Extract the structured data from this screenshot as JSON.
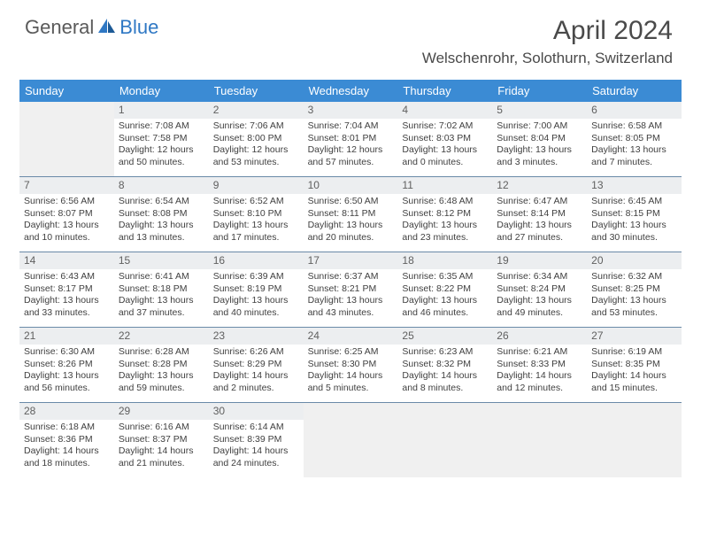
{
  "logo": {
    "part1": "General",
    "part2": "Blue"
  },
  "title": "April 2024",
  "location": "Welschenrohr, Solothurn, Switzerland",
  "colors": {
    "header_bg": "#3b8bd4",
    "header_text": "#ffffff",
    "divider": "#6a8aa8",
    "daynum_bg": "#eceef0",
    "empty_bg": "#f0f0f0",
    "logo_accent": "#2f78c4"
  },
  "day_headers": [
    "Sunday",
    "Monday",
    "Tuesday",
    "Wednesday",
    "Thursday",
    "Friday",
    "Saturday"
  ],
  "weeks": [
    [
      {
        "empty": true
      },
      {
        "num": "1",
        "sunrise": "Sunrise: 7:08 AM",
        "sunset": "Sunset: 7:58 PM",
        "day1": "Daylight: 12 hours",
        "day2": "and 50 minutes."
      },
      {
        "num": "2",
        "sunrise": "Sunrise: 7:06 AM",
        "sunset": "Sunset: 8:00 PM",
        "day1": "Daylight: 12 hours",
        "day2": "and 53 minutes."
      },
      {
        "num": "3",
        "sunrise": "Sunrise: 7:04 AM",
        "sunset": "Sunset: 8:01 PM",
        "day1": "Daylight: 12 hours",
        "day2": "and 57 minutes."
      },
      {
        "num": "4",
        "sunrise": "Sunrise: 7:02 AM",
        "sunset": "Sunset: 8:03 PM",
        "day1": "Daylight: 13 hours",
        "day2": "and 0 minutes."
      },
      {
        "num": "5",
        "sunrise": "Sunrise: 7:00 AM",
        "sunset": "Sunset: 8:04 PM",
        "day1": "Daylight: 13 hours",
        "day2": "and 3 minutes."
      },
      {
        "num": "6",
        "sunrise": "Sunrise: 6:58 AM",
        "sunset": "Sunset: 8:05 PM",
        "day1": "Daylight: 13 hours",
        "day2": "and 7 minutes."
      }
    ],
    [
      {
        "num": "7",
        "sunrise": "Sunrise: 6:56 AM",
        "sunset": "Sunset: 8:07 PM",
        "day1": "Daylight: 13 hours",
        "day2": "and 10 minutes."
      },
      {
        "num": "8",
        "sunrise": "Sunrise: 6:54 AM",
        "sunset": "Sunset: 8:08 PM",
        "day1": "Daylight: 13 hours",
        "day2": "and 13 minutes."
      },
      {
        "num": "9",
        "sunrise": "Sunrise: 6:52 AM",
        "sunset": "Sunset: 8:10 PM",
        "day1": "Daylight: 13 hours",
        "day2": "and 17 minutes."
      },
      {
        "num": "10",
        "sunrise": "Sunrise: 6:50 AM",
        "sunset": "Sunset: 8:11 PM",
        "day1": "Daylight: 13 hours",
        "day2": "and 20 minutes."
      },
      {
        "num": "11",
        "sunrise": "Sunrise: 6:48 AM",
        "sunset": "Sunset: 8:12 PM",
        "day1": "Daylight: 13 hours",
        "day2": "and 23 minutes."
      },
      {
        "num": "12",
        "sunrise": "Sunrise: 6:47 AM",
        "sunset": "Sunset: 8:14 PM",
        "day1": "Daylight: 13 hours",
        "day2": "and 27 minutes."
      },
      {
        "num": "13",
        "sunrise": "Sunrise: 6:45 AM",
        "sunset": "Sunset: 8:15 PM",
        "day1": "Daylight: 13 hours",
        "day2": "and 30 minutes."
      }
    ],
    [
      {
        "num": "14",
        "sunrise": "Sunrise: 6:43 AM",
        "sunset": "Sunset: 8:17 PM",
        "day1": "Daylight: 13 hours",
        "day2": "and 33 minutes."
      },
      {
        "num": "15",
        "sunrise": "Sunrise: 6:41 AM",
        "sunset": "Sunset: 8:18 PM",
        "day1": "Daylight: 13 hours",
        "day2": "and 37 minutes."
      },
      {
        "num": "16",
        "sunrise": "Sunrise: 6:39 AM",
        "sunset": "Sunset: 8:19 PM",
        "day1": "Daylight: 13 hours",
        "day2": "and 40 minutes."
      },
      {
        "num": "17",
        "sunrise": "Sunrise: 6:37 AM",
        "sunset": "Sunset: 8:21 PM",
        "day1": "Daylight: 13 hours",
        "day2": "and 43 minutes."
      },
      {
        "num": "18",
        "sunrise": "Sunrise: 6:35 AM",
        "sunset": "Sunset: 8:22 PM",
        "day1": "Daylight: 13 hours",
        "day2": "and 46 minutes."
      },
      {
        "num": "19",
        "sunrise": "Sunrise: 6:34 AM",
        "sunset": "Sunset: 8:24 PM",
        "day1": "Daylight: 13 hours",
        "day2": "and 49 minutes."
      },
      {
        "num": "20",
        "sunrise": "Sunrise: 6:32 AM",
        "sunset": "Sunset: 8:25 PM",
        "day1": "Daylight: 13 hours",
        "day2": "and 53 minutes."
      }
    ],
    [
      {
        "num": "21",
        "sunrise": "Sunrise: 6:30 AM",
        "sunset": "Sunset: 8:26 PM",
        "day1": "Daylight: 13 hours",
        "day2": "and 56 minutes."
      },
      {
        "num": "22",
        "sunrise": "Sunrise: 6:28 AM",
        "sunset": "Sunset: 8:28 PM",
        "day1": "Daylight: 13 hours",
        "day2": "and 59 minutes."
      },
      {
        "num": "23",
        "sunrise": "Sunrise: 6:26 AM",
        "sunset": "Sunset: 8:29 PM",
        "day1": "Daylight: 14 hours",
        "day2": "and 2 minutes."
      },
      {
        "num": "24",
        "sunrise": "Sunrise: 6:25 AM",
        "sunset": "Sunset: 8:30 PM",
        "day1": "Daylight: 14 hours",
        "day2": "and 5 minutes."
      },
      {
        "num": "25",
        "sunrise": "Sunrise: 6:23 AM",
        "sunset": "Sunset: 8:32 PM",
        "day1": "Daylight: 14 hours",
        "day2": "and 8 minutes."
      },
      {
        "num": "26",
        "sunrise": "Sunrise: 6:21 AM",
        "sunset": "Sunset: 8:33 PM",
        "day1": "Daylight: 14 hours",
        "day2": "and 12 minutes."
      },
      {
        "num": "27",
        "sunrise": "Sunrise: 6:19 AM",
        "sunset": "Sunset: 8:35 PM",
        "day1": "Daylight: 14 hours",
        "day2": "and 15 minutes."
      }
    ],
    [
      {
        "num": "28",
        "sunrise": "Sunrise: 6:18 AM",
        "sunset": "Sunset: 8:36 PM",
        "day1": "Daylight: 14 hours",
        "day2": "and 18 minutes."
      },
      {
        "num": "29",
        "sunrise": "Sunrise: 6:16 AM",
        "sunset": "Sunset: 8:37 PM",
        "day1": "Daylight: 14 hours",
        "day2": "and 21 minutes."
      },
      {
        "num": "30",
        "sunrise": "Sunrise: 6:14 AM",
        "sunset": "Sunset: 8:39 PM",
        "day1": "Daylight: 14 hours",
        "day2": "and 24 minutes."
      },
      {
        "empty": true
      },
      {
        "empty": true
      },
      {
        "empty": true
      },
      {
        "empty": true
      }
    ]
  ]
}
